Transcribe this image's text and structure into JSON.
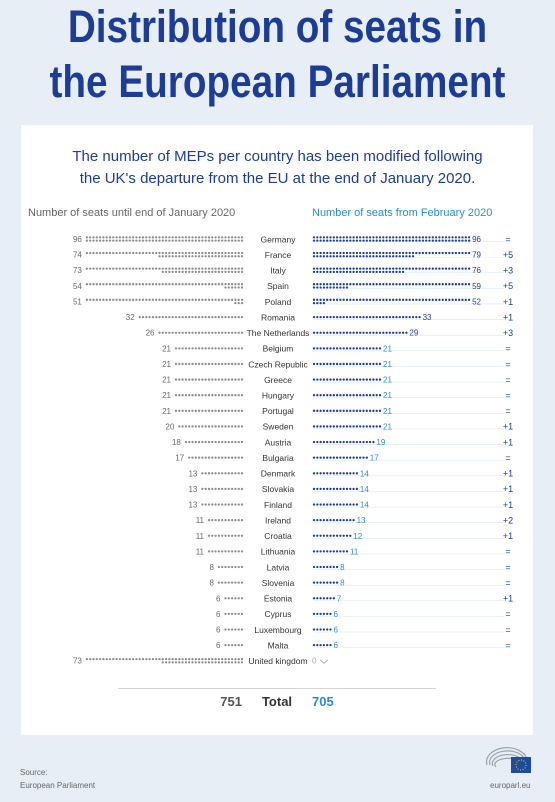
{
  "title": {
    "line1": "Distribution of seats in",
    "line2": "the European Parliament"
  },
  "subtitle": {
    "line1": "The number of MEPs per country has been modified following",
    "line2": "the UK's departure from the EU at the end of January 2020."
  },
  "colors": {
    "title": "#1d3c94",
    "before": "#8c8c8c",
    "after_dark": "#1d3c94",
    "after_light": "#2d8bd6"
  },
  "chart_data": {
    "type": "dot-plot",
    "left_header": "Number of seats until end of January 2020",
    "right_header": "Number of seats from February 2020",
    "countries": [
      "Germany",
      "France",
      "Italy",
      "Spain",
      "Poland",
      "Romania",
      "The Netherlands",
      "Belgium",
      "Czech Republic",
      "Greece",
      "Hungary",
      "Portugal",
      "Sweden",
      "Austria",
      "Bulgaria",
      "Denmark",
      "Slovakia",
      "Finland",
      "Ireland",
      "Croatia",
      "Lithuania",
      "Latvia",
      "Slovenia",
      "Estonia",
      "Cyprus",
      "Luxembourg",
      "Malta",
      "United kingdom"
    ],
    "before": [
      96,
      74,
      73,
      54,
      51,
      32,
      26,
      21,
      21,
      21,
      21,
      21,
      20,
      18,
      17,
      13,
      13,
      13,
      11,
      11,
      11,
      8,
      8,
      6,
      6,
      6,
      6,
      73
    ],
    "after": [
      96,
      79,
      76,
      59,
      52,
      33,
      29,
      21,
      21,
      21,
      21,
      21,
      21,
      19,
      17,
      14,
      14,
      14,
      13,
      12,
      11,
      8,
      8,
      7,
      6,
      6,
      6,
      0
    ],
    "change": [
      "=",
      "+5",
      "+3",
      "+5",
      "+1",
      "+1",
      "+3",
      "=",
      "=",
      "=",
      "=",
      "=",
      "+1",
      "+1",
      "=",
      "+1",
      "+1",
      "+1",
      "+2",
      "+1",
      "=",
      "=",
      "=",
      "+1",
      "=",
      "=",
      "=",
      ""
    ],
    "total_label": "Total",
    "total_before": 751,
    "total_after": 705
  },
  "source": {
    "label": "Source:",
    "name": "European Parliament"
  },
  "site": "europarl.eu"
}
